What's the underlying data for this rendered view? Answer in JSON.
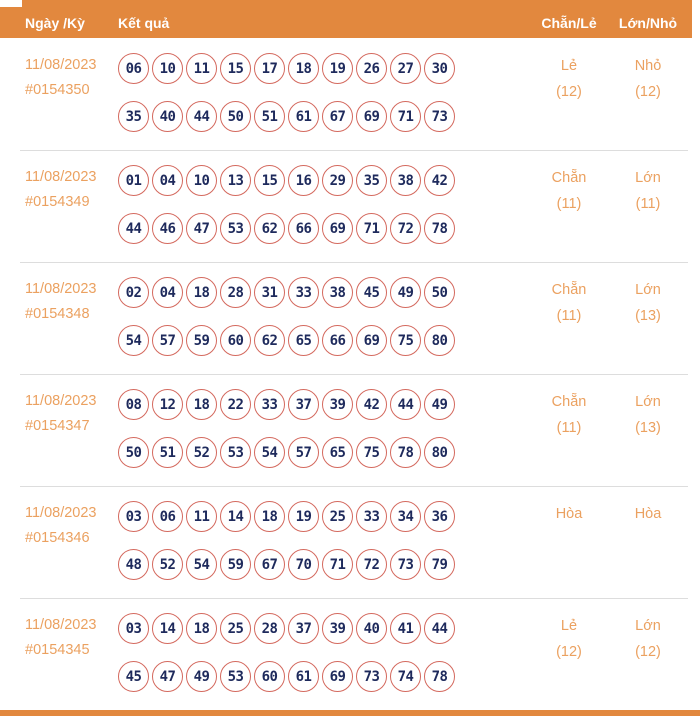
{
  "colors": {
    "accent": "#E2883E",
    "ball_border": "#D4695E",
    "ball_number": "#1E2A5C",
    "muted_text": "#EBA160",
    "separator": "#DDDDDD"
  },
  "header": {
    "columns": [
      "Ngày /Kỳ",
      "Kết quả",
      "Chẵn/Lẻ",
      "Lớn/Nhỏ"
    ]
  },
  "rows": [
    {
      "date": "11/08/2023",
      "draw": "#0154350",
      "line1": [
        "06",
        "10",
        "11",
        "15",
        "17",
        "18",
        "19",
        "26",
        "27",
        "30"
      ],
      "line2": [
        "35",
        "40",
        "44",
        "50",
        "51",
        "61",
        "67",
        "69",
        "71",
        "73"
      ],
      "chan_le": {
        "label": "Lẻ",
        "count": "(12)"
      },
      "lon_nho": {
        "label": "Nhỏ",
        "count": "(12)"
      }
    },
    {
      "date": "11/08/2023",
      "draw": "#0154349",
      "line1": [
        "01",
        "04",
        "10",
        "13",
        "15",
        "16",
        "29",
        "35",
        "38",
        "42"
      ],
      "line2": [
        "44",
        "46",
        "47",
        "53",
        "62",
        "66",
        "69",
        "71",
        "72",
        "78"
      ],
      "chan_le": {
        "label": "Chẵn",
        "count": "(11)"
      },
      "lon_nho": {
        "label": "Lớn",
        "count": "(11)"
      }
    },
    {
      "date": "11/08/2023",
      "draw": "#0154348",
      "line1": [
        "02",
        "04",
        "18",
        "28",
        "31",
        "33",
        "38",
        "45",
        "49",
        "50"
      ],
      "line2": [
        "54",
        "57",
        "59",
        "60",
        "62",
        "65",
        "66",
        "69",
        "75",
        "80"
      ],
      "chan_le": {
        "label": "Chẵn",
        "count": "(11)"
      },
      "lon_nho": {
        "label": "Lớn",
        "count": "(13)"
      }
    },
    {
      "date": "11/08/2023",
      "draw": "#0154347",
      "line1": [
        "08",
        "12",
        "18",
        "22",
        "33",
        "37",
        "39",
        "42",
        "44",
        "49"
      ],
      "line2": [
        "50",
        "51",
        "52",
        "53",
        "54",
        "57",
        "65",
        "75",
        "78",
        "80"
      ],
      "chan_le": {
        "label": "Chẵn",
        "count": "(11)"
      },
      "lon_nho": {
        "label": "Lớn",
        "count": "(13)"
      }
    },
    {
      "date": "11/08/2023",
      "draw": "#0154346",
      "line1": [
        "03",
        "06",
        "11",
        "14",
        "18",
        "19",
        "25",
        "33",
        "34",
        "36"
      ],
      "line2": [
        "48",
        "52",
        "54",
        "59",
        "67",
        "70",
        "71",
        "72",
        "73",
        "79"
      ],
      "chan_le": {
        "label": "Hòa",
        "count": ""
      },
      "lon_nho": {
        "label": "Hòa",
        "count": ""
      }
    },
    {
      "date": "11/08/2023",
      "draw": "#0154345",
      "line1": [
        "03",
        "14",
        "18",
        "25",
        "28",
        "37",
        "39",
        "40",
        "41",
        "44"
      ],
      "line2": [
        "45",
        "47",
        "49",
        "53",
        "60",
        "61",
        "69",
        "73",
        "74",
        "78"
      ],
      "chan_le": {
        "label": "Lẻ",
        "count": "(12)"
      },
      "lon_nho": {
        "label": "Lớn",
        "count": "(12)"
      }
    }
  ]
}
